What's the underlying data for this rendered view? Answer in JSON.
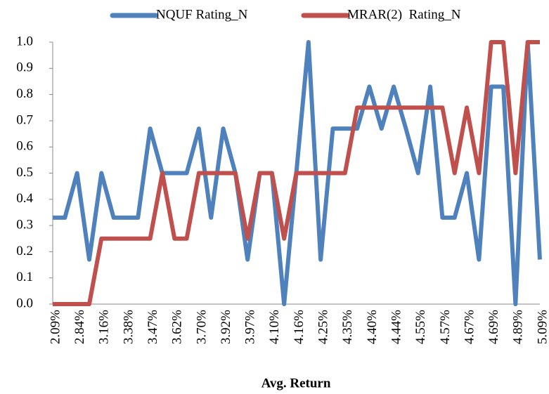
{
  "chart_data": {
    "type": "line",
    "x_label": "Avg. Return",
    "categories": [
      "2.09%",
      null,
      "2.84%",
      null,
      "3.16%",
      null,
      "3.38%",
      null,
      "3.47%",
      null,
      "3.62%",
      null,
      "3.70%",
      null,
      "3.92%",
      null,
      "3.97%",
      null,
      "4.10%",
      null,
      "4.16%",
      null,
      "4.25%",
      null,
      "4.35%",
      null,
      "4.40%",
      null,
      "4.44%",
      null,
      "4.55%",
      null,
      "4.57%",
      null,
      "4.67%",
      null,
      "4.69%",
      null,
      "4.89%",
      null,
      "5.09%"
    ],
    "series": [
      {
        "name": "NQUF Rating_N",
        "color": "#4f81bd",
        "values": [
          0.33,
          0.33,
          0.5,
          0.17,
          0.5,
          0.33,
          0.33,
          0.33,
          0.67,
          0.5,
          0.5,
          0.5,
          0.67,
          0.33,
          0.67,
          0.5,
          0.17,
          0.5,
          0.5,
          0,
          0.5,
          1,
          0.17,
          0.67,
          0.67,
          0.67,
          0.83,
          0.67,
          0.83,
          0.67,
          0.5,
          0.83,
          0.33,
          0.33,
          0.5,
          0.17,
          0.83,
          0.83,
          0,
          1,
          0.17
        ]
      },
      {
        "name": "MRAR(2)  Rating_N",
        "color": "#c0504d",
        "values": [
          0,
          0,
          0,
          0,
          0.25,
          0.25,
          0.25,
          0.25,
          0.25,
          0.5,
          0.25,
          0.25,
          0.5,
          0.5,
          0.5,
          0.5,
          0.25,
          0.5,
          0.5,
          0.25,
          0.5,
          0.5,
          0.5,
          0.5,
          0.5,
          0.75,
          0.75,
          0.75,
          0.75,
          0.75,
          0.75,
          0.75,
          0.75,
          0.5,
          0.75,
          0.5,
          1,
          1,
          0.5,
          1,
          1
        ]
      }
    ],
    "ylim": [
      0,
      1
    ],
    "yticks": [
      {
        "value": 0,
        "label": "0.0"
      },
      0.1,
      0.2,
      0.3,
      0.4,
      0.5,
      0.6,
      0.7,
      0.8,
      0.9,
      {
        "value": 1,
        "label": "1.0"
      }
    ],
    "legend": "top"
  }
}
